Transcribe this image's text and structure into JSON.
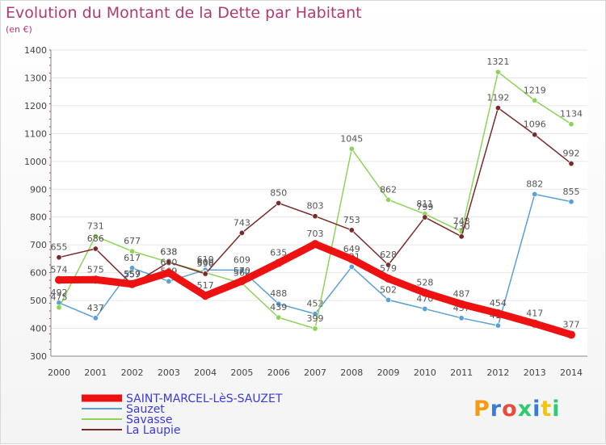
{
  "title": "Evolution du Montant de la Dette par Habitant",
  "unit_label": "(en €)",
  "logo_text": "Proxiti",
  "chart_data": {
    "type": "line",
    "title": "Evolution du Montant de la Dette par Habitant",
    "ylabel": "(en €)",
    "xlabel": "",
    "ylim": [
      300,
      1400
    ],
    "yticks": [
      300,
      400,
      500,
      600,
      700,
      800,
      900,
      1000,
      1100,
      1200,
      1300,
      1400
    ],
    "grid": true,
    "legend_position": "bottom-left",
    "categories": [
      "2000",
      "2001",
      "2002",
      "2003",
      "2004",
      "2005",
      "2006",
      "2007",
      "2008",
      "2009",
      "2010",
      "2011",
      "2012",
      "2013",
      "2014"
    ],
    "series": [
      {
        "name": "Sauzet",
        "color": "#5aa0d6",
        "values": [
          492,
          437,
          617,
          569,
          610,
          609,
          488,
          452,
          621,
          502,
          470,
          437,
          410,
          882,
          855
        ],
        "labels": [
          "492",
          "437",
          "617",
          "569",
          "610",
          "609",
          "488",
          "452",
          "621",
          "502",
          "470",
          "437",
          "410",
          "882",
          "855"
        ]
      },
      {
        "name": "Savasse",
        "color": "#8fd35a",
        "values": [
          475,
          731,
          677,
          638,
          600,
          562,
          439,
          399,
          1045,
          862,
          811,
          748,
          1321,
          1219,
          1134
        ],
        "labels": [
          "475",
          "731",
          "677",
          "638",
          "600",
          "562",
          "439",
          "399",
          "1045",
          "862",
          "811",
          "748",
          "1321",
          "1219",
          "1134"
        ]
      },
      {
        "name": "La Laupie",
        "color": "#7a2a2a",
        "values": [
          655,
          686,
          557,
          638,
          596,
          743,
          850,
          803,
          753,
          628,
          799,
          730,
          1192,
          1096,
          992
        ],
        "labels": [
          "655",
          "686",
          "557",
          "638",
          "596",
          "743",
          "850",
          "803",
          "753",
          "628",
          "799",
          "730",
          "1192",
          "1096",
          "992"
        ]
      },
      {
        "name": "SAINT-MARCEL-LèS-SAUZET",
        "color": "#ee1111",
        "values": [
          574,
          575,
          559,
          600,
          517,
          570,
          635,
          703,
          649,
          579,
          528,
          487,
          454,
          417,
          377
        ],
        "labels": [
          "574",
          "575",
          "559",
          "600",
          "517",
          "570",
          "635",
          "703",
          "649",
          "579",
          "528",
          "487",
          "454",
          "417",
          "377"
        ]
      }
    ],
    "legend_order": [
      "SAINT-MARCEL-LèS-SAUZET",
      "Sauzet",
      "Savasse",
      "La Laupie"
    ]
  }
}
